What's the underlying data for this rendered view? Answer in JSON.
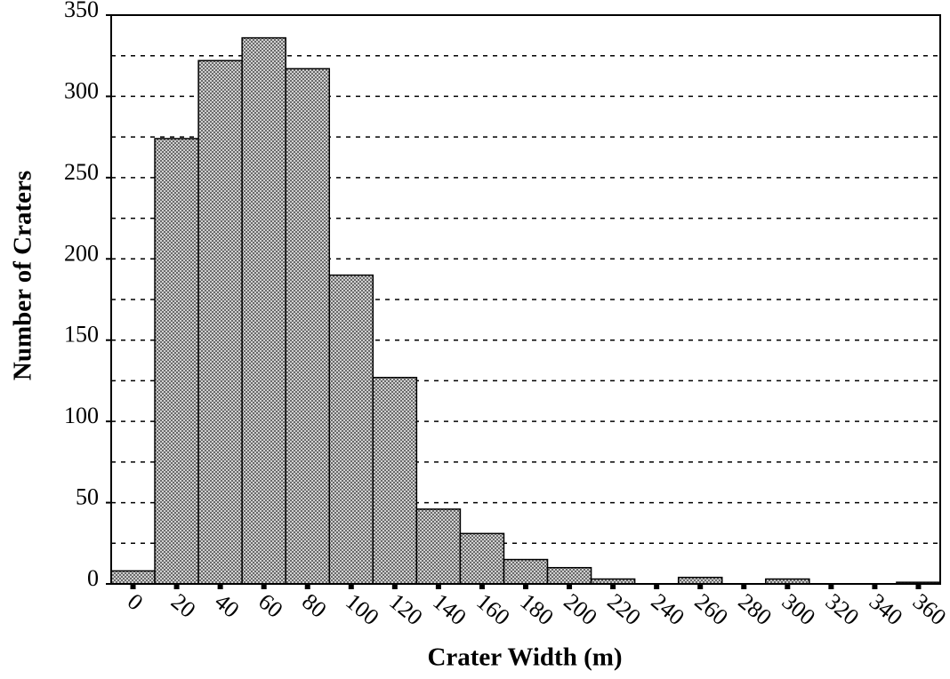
{
  "chart_data": {
    "type": "bar",
    "xlabel": "Crater Width (m)",
    "ylabel": "Number of Craters",
    "categories": [
      "0",
      "20",
      "40",
      "60",
      "80",
      "100",
      "120",
      "140",
      "160",
      "180",
      "200",
      "220",
      "240",
      "260",
      "280",
      "300",
      "320",
      "340",
      "360"
    ],
    "values": [
      8,
      274,
      322,
      336,
      317,
      190,
      127,
      46,
      31,
      15,
      10,
      3,
      0,
      4,
      0,
      3,
      0,
      0,
      1
    ],
    "color": "#8c8c8c",
    "ylim": [
      0,
      350
    ],
    "yticks": [
      0,
      50,
      100,
      150,
      200,
      250,
      300,
      350
    ],
    "grid": true,
    "grid_lines": [
      25,
      50,
      75,
      100,
      125,
      150,
      175,
      200,
      225,
      250,
      275,
      300,
      325
    ]
  }
}
